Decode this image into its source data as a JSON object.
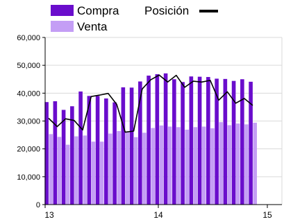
{
  "chart_data": {
    "type": "bar",
    "x_tick_labels": [
      "13",
      "14",
      "15"
    ],
    "ylim": [
      0,
      60000
    ],
    "y_ticks": [
      "0",
      "10,000",
      "20,000",
      "30,000",
      "40,000",
      "50,000",
      "60,000"
    ],
    "grid": true,
    "legend": "top",
    "series": [
      {
        "name": "Compra",
        "kind": "bar",
        "color": "#6a0dcc",
        "values": [
          36800,
          37100,
          34000,
          35300,
          40600,
          39000,
          39000,
          38100,
          36700,
          42100,
          42000,
          44200,
          46300,
          46800,
          47100,
          45000,
          44000,
          46000,
          45900,
          45800,
          45200,
          45100,
          44400,
          45000,
          44100
        ]
      },
      {
        "name": "Venta",
        "kind": "bar",
        "color": "#c49ef5",
        "values": [
          25300,
          24300,
          21500,
          24500,
          24800,
          22600,
          22600,
          25500,
          26400,
          26100,
          24200,
          25800,
          27500,
          28400,
          28000,
          27800,
          26900,
          27800,
          28000,
          27400,
          29600,
          28500,
          29100,
          28800,
          29400
        ]
      },
      {
        "name": "Posición",
        "kind": "line",
        "color": "#000000",
        "values": [
          31000,
          28000,
          30800,
          30200,
          26800,
          38800,
          39300,
          39900,
          36000,
          26000,
          26400,
          41500,
          44800,
          46500,
          44000,
          46400,
          42100,
          44300,
          44000,
          44600,
          37500,
          40500,
          36400,
          38100,
          35600
        ]
      }
    ]
  }
}
